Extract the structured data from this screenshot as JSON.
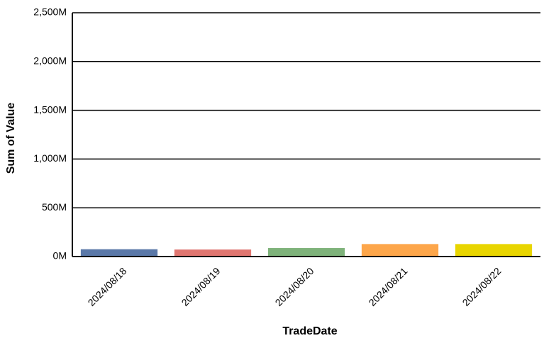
{
  "chart_data": {
    "type": "bar",
    "title": "",
    "xlabel": "TradeDate",
    "ylabel": "Sum of Value",
    "categories": [
      "2024/08/18",
      "2024/08/19",
      "2024/08/20",
      "2024/08/21",
      "2024/08/22"
    ],
    "values": [
      75,
      72,
      87,
      128,
      128
    ],
    "bar_colors": [
      "#5a78a8",
      "#e07670",
      "#7eb27a",
      "#fda64a",
      "#e8d500"
    ],
    "ylim": [
      0,
      2500
    ],
    "y_ticks": [
      0,
      500,
      1000,
      1500,
      2000,
      2500
    ],
    "y_tick_labels": [
      "0M",
      "500M",
      "1,000M",
      "1,500M",
      "2,000M",
      "2,500M"
    ],
    "y_unit": "M",
    "grid": true,
    "legend": "none"
  }
}
